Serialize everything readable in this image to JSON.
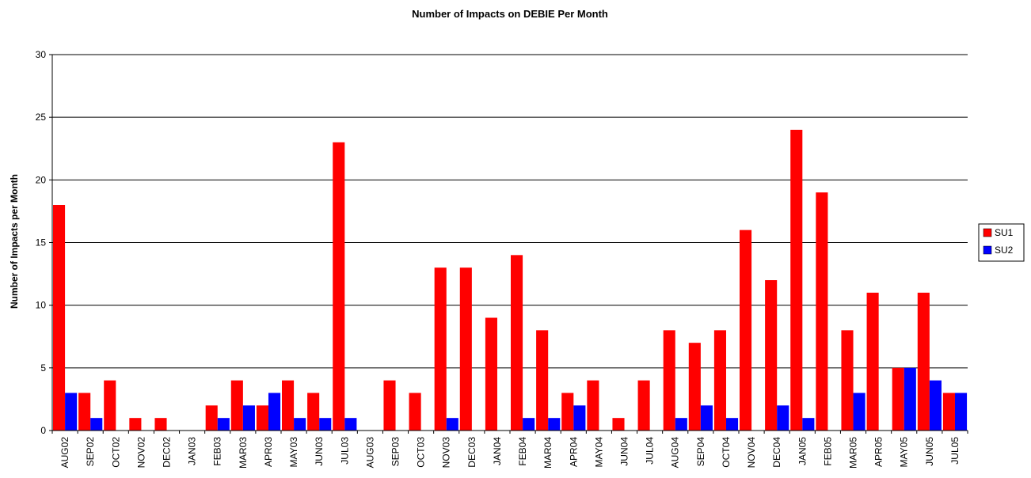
{
  "chart_data": {
    "type": "bar",
    "title": "Number of Impacts on DEBIE Per Month",
    "y_label": "Number of Impacts per Month",
    "categories": [
      "AUG02",
      "SEP02",
      "OCT02",
      "NOV02",
      "DEC02",
      "JAN03",
      "FEB03",
      "MAR03",
      "APR03",
      "MAY03",
      "JUN03",
      "JUL03",
      "AUG03",
      "SEP03",
      "OCT03",
      "NOV03",
      "DEC03",
      "JAN04",
      "FEB04",
      "MAR04",
      "APR04",
      "MAY04",
      "JUN04",
      "JUL04",
      "AUG04",
      "SEP04",
      "OCT04",
      "NOV04",
      "DEC04",
      "JAN05",
      "FEB05",
      "MAR05",
      "APR05",
      "MAY05",
      "JUN05",
      "JUL05"
    ],
    "series": [
      {
        "name": "SU1",
        "color": "#ff0000",
        "values": [
          18,
          3,
          4,
          1,
          1,
          0,
          2,
          4,
          2,
          4,
          3,
          23,
          0,
          4,
          3,
          13,
          13,
          9,
          14,
          8,
          3,
          4,
          1,
          4,
          8,
          7,
          8,
          16,
          12,
          24,
          19,
          8,
          11,
          5,
          11,
          3
        ]
      },
      {
        "name": "SU2",
        "color": "#0000ff",
        "values": [
          3,
          1,
          0,
          0,
          0,
          0,
          1,
          2,
          3,
          1,
          1,
          1,
          0,
          0,
          0,
          1,
          0,
          0,
          1,
          1,
          2,
          0,
          0,
          0,
          1,
          2,
          1,
          0,
          2,
          1,
          0,
          3,
          0,
          5,
          4,
          3
        ]
      }
    ],
    "ylim": [
      0,
      30
    ],
    "yticks": [
      0,
      5,
      10,
      15,
      20,
      25,
      30
    ],
    "grid": true,
    "legend": "right"
  }
}
